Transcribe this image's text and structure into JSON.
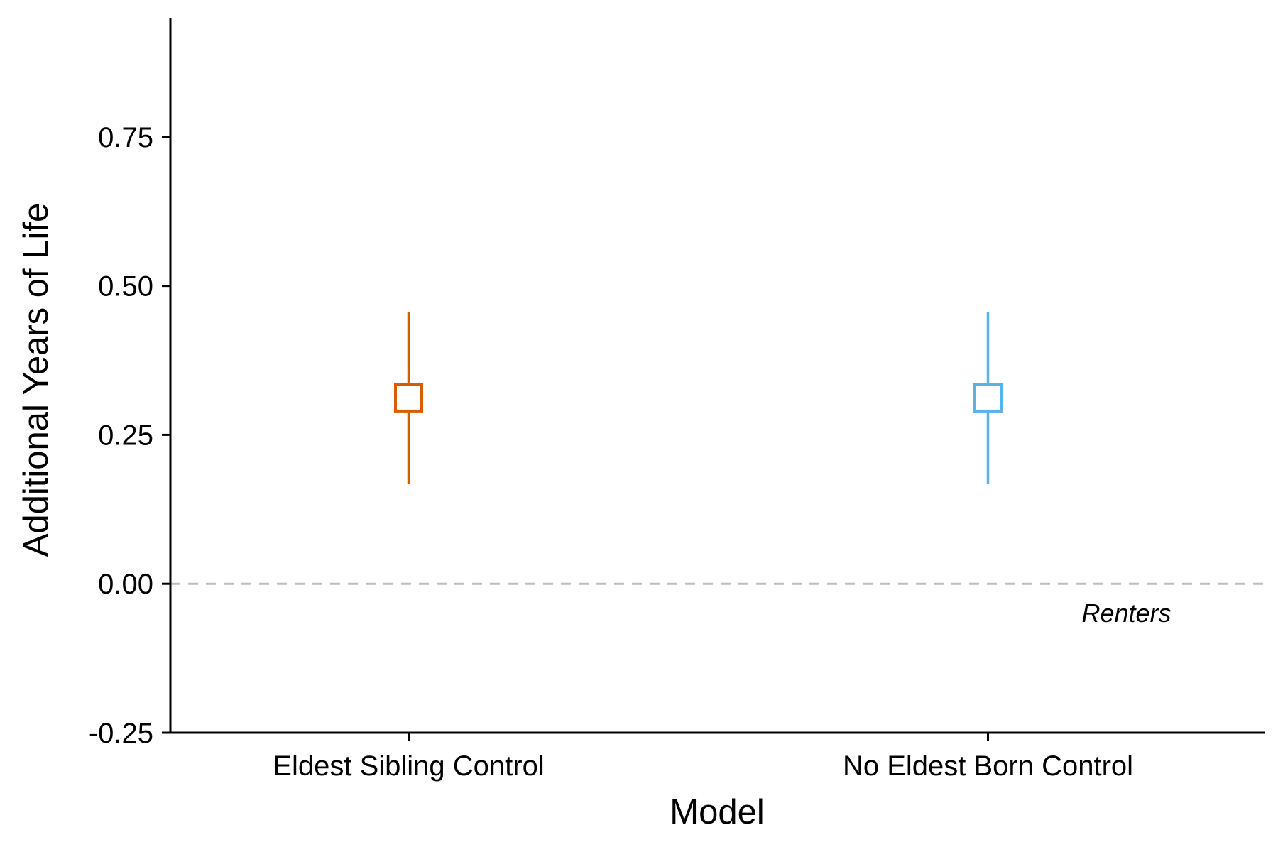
{
  "chart_data": {
    "type": "errorbar",
    "xlabel": "Model",
    "ylabel": "Additional Years of Life",
    "ylim": [
      -0.25,
      0.95
    ],
    "yticks": [
      -0.25,
      0.0,
      0.25,
      0.5,
      0.75
    ],
    "ytick_labels": [
      "-0.25",
      "0.00",
      "0.25",
      "0.50",
      "0.75"
    ],
    "categories": [
      "Eldest Sibling Control",
      "No Eldest Born Control"
    ],
    "points": [
      {
        "category": "Eldest Sibling Control",
        "estimate": 0.312,
        "lower": 0.168,
        "upper": 0.456,
        "color": "#D55E00"
      },
      {
        "category": "No Eldest Born Control",
        "estimate": 0.312,
        "lower": 0.168,
        "upper": 0.456,
        "color": "#56B4E9"
      }
    ],
    "reference_line": {
      "y": 0.0,
      "style": "dashed",
      "color": "#BEBEBE"
    },
    "annotation": {
      "text": "Renters",
      "x": "No Eldest Born Control",
      "y": -0.05
    },
    "grid": false,
    "legend": "none"
  }
}
